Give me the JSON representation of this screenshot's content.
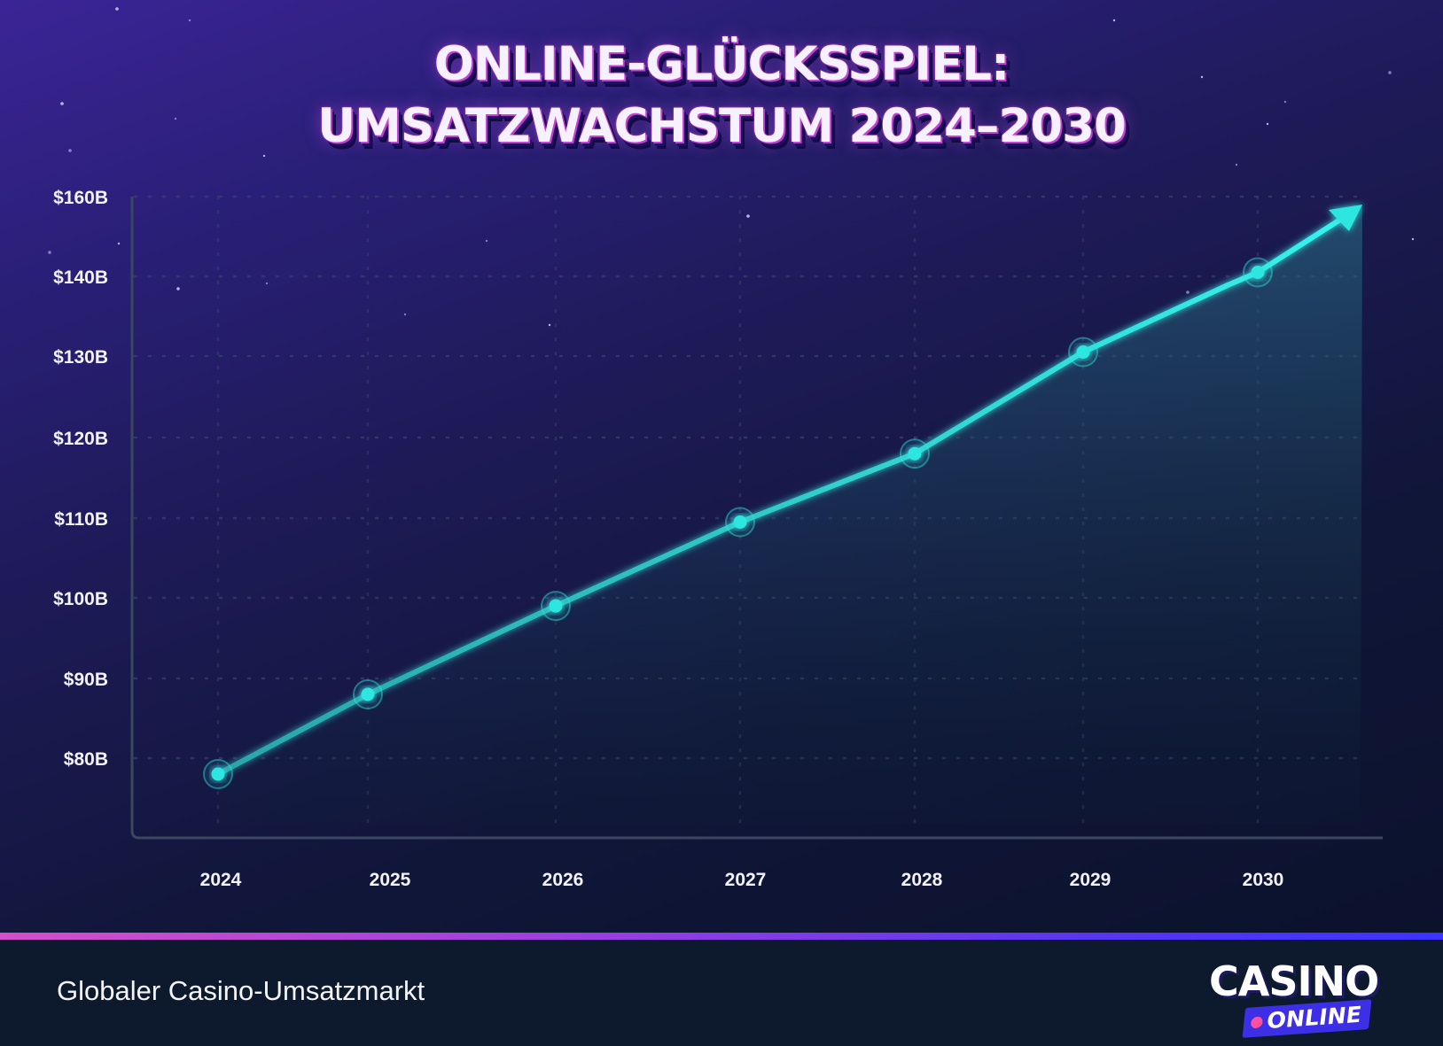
{
  "header": {
    "title_line1": "ONLINE-GLÜCKSSPIEL:",
    "title_line2": "UMSATZWACHSTUM 2024–2030"
  },
  "chart_data": {
    "type": "line",
    "categories": [
      "2024",
      "2025",
      "2026",
      "2027",
      "2028",
      "2029",
      "2030"
    ],
    "values": [
      78,
      88,
      99,
      109.5,
      118,
      130.5,
      141
    ],
    "y_ticks": [
      80,
      90,
      100,
      110,
      120,
      130,
      140,
      160
    ],
    "y_tick_labels": [
      "$80B",
      "$90B",
      "$100B",
      "$110B",
      "$120B",
      "$130B",
      "$140B",
      "$160B"
    ],
    "ylabel": "",
    "xlabel": "",
    "grid": true,
    "trend_arrow": true,
    "colors": {
      "line": "#2de6e0",
      "area": "#1f5a6e"
    }
  },
  "footer": {
    "caption": "Globaler Casino-Umsatzmarkt",
    "logo_main": "CASINO",
    "logo_sub": "ONLINE"
  },
  "colors": {
    "accent": "#2de6e0",
    "divider_start": "#d44fc8",
    "divider_end": "#3c33ff",
    "footer_bg": "#0d1a2e"
  }
}
